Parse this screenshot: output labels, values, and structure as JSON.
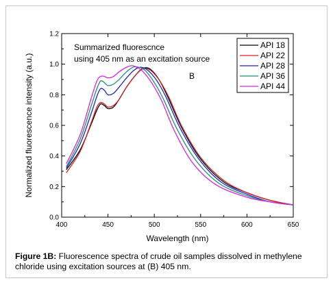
{
  "chart_data": {
    "type": "line",
    "xlabel": "Wavelength (nm)",
    "ylabel": "Normalized fluorescence intensity (a.u.)",
    "xlim": [
      400,
      650
    ],
    "ylim": [
      0.0,
      1.2
    ],
    "xticks": [
      "400",
      "450",
      "500",
      "550",
      "600",
      "650"
    ],
    "yticks": [
      "0.0",
      "0.2",
      "0.4",
      "0.6",
      "0.8",
      "1.0",
      "1.2"
    ],
    "grid": false,
    "legend_position": "top-right",
    "annotation_lines": [
      "Summarized fluorescnce",
      "using 405 nm as an excitation source"
    ],
    "panel_label": "B",
    "series": [
      {
        "name": "API 18",
        "color": "#000000",
        "x": [
          405,
          420,
          432,
          438,
          442,
          446,
          450,
          456,
          462,
          470,
          480,
          487,
          495,
          505,
          515,
          530,
          550,
          575,
          600,
          625,
          650
        ],
        "y": [
          0.31,
          0.44,
          0.61,
          0.7,
          0.74,
          0.73,
          0.71,
          0.72,
          0.77,
          0.85,
          0.93,
          0.97,
          0.97,
          0.9,
          0.78,
          0.58,
          0.38,
          0.23,
          0.16,
          0.11,
          0.08
        ]
      },
      {
        "name": "API 22",
        "color": "#d62020",
        "x": [
          405,
          420,
          432,
          438,
          442,
          446,
          450,
          456,
          462,
          470,
          480,
          488,
          496,
          506,
          516,
          530,
          550,
          575,
          600,
          625,
          650
        ],
        "y": [
          0.29,
          0.43,
          0.62,
          0.72,
          0.75,
          0.74,
          0.72,
          0.73,
          0.77,
          0.85,
          0.93,
          0.97,
          0.96,
          0.89,
          0.78,
          0.59,
          0.39,
          0.24,
          0.16,
          0.11,
          0.08
        ]
      },
      {
        "name": "API 28",
        "color": "#2020cc",
        "x": [
          405,
          420,
          432,
          438,
          442,
          446,
          450,
          456,
          462,
          470,
          478,
          485,
          493,
          503,
          513,
          528,
          548,
          572,
          600,
          625,
          650
        ],
        "y": [
          0.32,
          0.48,
          0.68,
          0.79,
          0.84,
          0.83,
          0.8,
          0.81,
          0.85,
          0.91,
          0.96,
          0.98,
          0.96,
          0.89,
          0.78,
          0.58,
          0.38,
          0.23,
          0.15,
          0.1,
          0.08
        ]
      },
      {
        "name": "API 36",
        "color": "#1f8f7a",
        "x": [
          405,
          420,
          432,
          438,
          442,
          446,
          450,
          456,
          462,
          470,
          477,
          483,
          490,
          500,
          510,
          525,
          545,
          570,
          600,
          625,
          650
        ],
        "y": [
          0.33,
          0.51,
          0.73,
          0.84,
          0.89,
          0.88,
          0.86,
          0.87,
          0.9,
          0.95,
          0.98,
          0.98,
          0.96,
          0.88,
          0.77,
          0.57,
          0.37,
          0.22,
          0.14,
          0.1,
          0.08
        ]
      },
      {
        "name": "API 44",
        "color": "#e020e0",
        "x": [
          405,
          420,
          432,
          438,
          442,
          446,
          450,
          456,
          462,
          470,
          476,
          481,
          488,
          498,
          508,
          522,
          542,
          567,
          600,
          625,
          650
        ],
        "y": [
          0.35,
          0.54,
          0.78,
          0.89,
          0.92,
          0.92,
          0.91,
          0.92,
          0.95,
          0.98,
          0.99,
          0.98,
          0.95,
          0.87,
          0.76,
          0.56,
          0.35,
          0.21,
          0.13,
          0.1,
          0.08
        ]
      }
    ]
  },
  "caption": {
    "label": "Figure 1B:",
    "text": " Fluorescence spectra of crude oil samples dissolved in methylene chloride using excitation sources at (B) 405 nm."
  }
}
